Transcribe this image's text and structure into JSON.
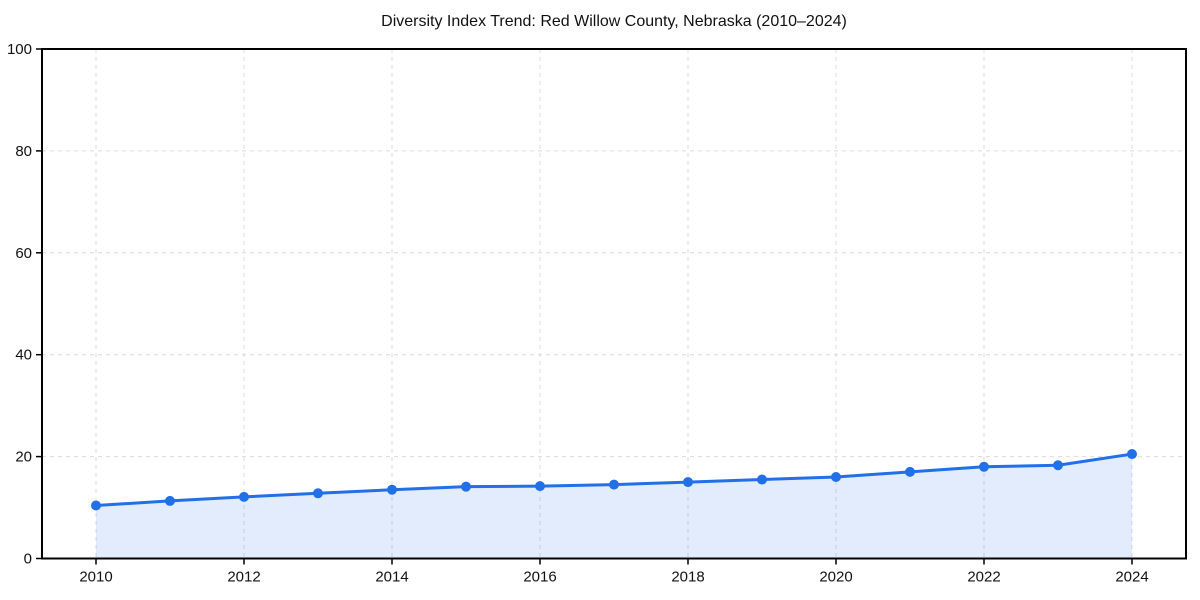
{
  "chart_data": {
    "type": "line",
    "title": "Diversity Index Trend: Red Willow County, Nebraska (2010–2024)",
    "x": [
      2010,
      2011,
      2012,
      2013,
      2014,
      2015,
      2016,
      2017,
      2018,
      2019,
      2020,
      2021,
      2022,
      2023,
      2024
    ],
    "series": [
      {
        "name": "Diversity Index",
        "values": [
          10.4,
          11.3,
          12.1,
          12.8,
          13.5,
          14.1,
          14.2,
          14.5,
          15.0,
          15.5,
          16.0,
          17.0,
          18.0,
          18.3,
          20.5
        ]
      }
    ],
    "xlabel": "",
    "ylabel": "",
    "ylim": [
      0,
      100
    ],
    "yticks": [
      0,
      20,
      40,
      60,
      80,
      100
    ],
    "xticks": [
      2010,
      2012,
      2014,
      2016,
      2018,
      2020,
      2022,
      2024
    ],
    "grid": true,
    "grid_style": "dashed",
    "legend_position": "none",
    "marker": "circle",
    "fill_below": true,
    "fill_opacity": 0.13,
    "colors": {
      "line": "#2170e8",
      "marker": "#2170e8",
      "fill": "#2170e8",
      "grid": "#dcdcdc",
      "axis": "#000000",
      "text": "#111111"
    }
  }
}
